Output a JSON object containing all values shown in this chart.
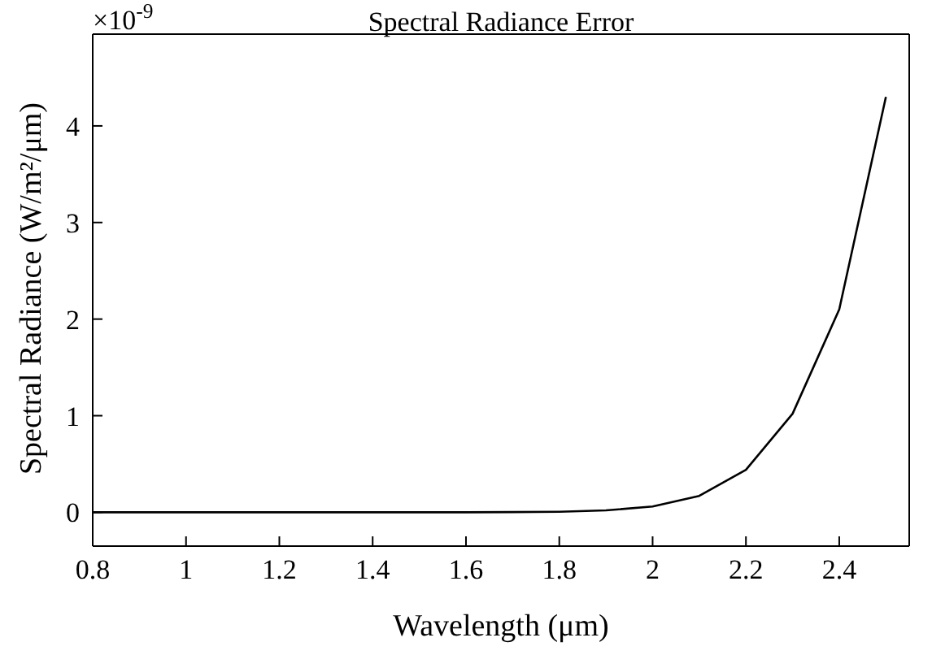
{
  "chart_data": {
    "type": "line",
    "title": "Spectral Radiance Error",
    "xlabel": "Wavelength (μm)",
    "ylabel": "Spectral Radiance (W/m²/μm)",
    "annotations": [
      "×10$^{-9}$"
    ],
    "x": [
      0.8,
      0.9,
      1.0,
      1.1,
      1.2,
      1.3,
      1.4,
      1.5,
      1.6,
      1.7,
      1.8,
      1.9,
      2.0,
      2.1,
      2.2,
      2.3,
      2.4,
      2.5
    ],
    "series": [
      {
        "color": "#000000",
        "values": [
          0,
          0,
          0,
          0,
          0,
          0,
          0,
          0,
          0,
          0.002,
          0.006,
          0.02,
          0.06,
          0.17,
          0.44,
          1.02,
          2.1,
          4.3
        ]
      }
    ],
    "xlim": [
      0.8,
      2.55
    ],
    "xticks": [
      0.8,
      1,
      1.2,
      1.4,
      1.6,
      1.8,
      2,
      2.2,
      2.4
    ],
    "ylim": [
      -0.35,
      4.95
    ],
    "yticks": [
      0,
      1,
      2,
      3,
      4
    ],
    "grid": false,
    "legend": false,
    "marker": "none",
    "line_style": "solid"
  }
}
